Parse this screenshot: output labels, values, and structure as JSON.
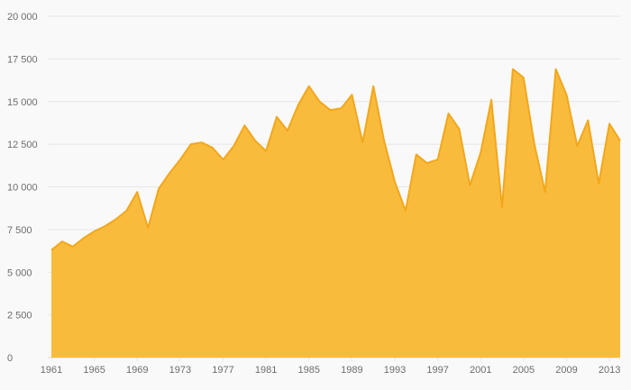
{
  "chart_data": {
    "type": "area",
    "title": "",
    "xlabel": "",
    "ylabel": "",
    "legend": "none",
    "grid": "horizontal",
    "ylim": [
      0,
      20000
    ],
    "y_tick_interval": 2500,
    "y_tick_labels": [
      "0",
      "2 500",
      "5 000",
      "7 500",
      "10 000",
      "12 500",
      "15 000",
      "17 500",
      "20 000"
    ],
    "x_tick_years": [
      1961,
      1965,
      1969,
      1973,
      1977,
      1981,
      1985,
      1989,
      1993,
      1997,
      2001,
      2005,
      2009,
      2013
    ],
    "x": [
      1961,
      1962,
      1963,
      1964,
      1965,
      1966,
      1967,
      1968,
      1969,
      1970,
      1971,
      1972,
      1973,
      1974,
      1975,
      1976,
      1977,
      1978,
      1979,
      1980,
      1981,
      1982,
      1983,
      1984,
      1985,
      1986,
      1987,
      1988,
      1989,
      1990,
      1991,
      1992,
      1993,
      1994,
      1995,
      1996,
      1997,
      1998,
      1999,
      2000,
      2001,
      2002,
      2003,
      2004,
      2005,
      2006,
      2007,
      2008,
      2009,
      2010,
      2011,
      2012,
      2013,
      2014
    ],
    "values": [
      6300,
      6800,
      6500,
      7000,
      7400,
      7700,
      8100,
      8600,
      9700,
      7600,
      9900,
      10800,
      11600,
      12500,
      12600,
      12300,
      11600,
      12400,
      13600,
      12700,
      12100,
      14100,
      13300,
      14800,
      15900,
      15000,
      14500,
      14600,
      15400,
      12600,
      15900,
      12700,
      10300,
      8600,
      11900,
      11400,
      11600,
      14300,
      13400,
      10100,
      12000,
      15100,
      8800,
      16900,
      16400,
      12500,
      9700,
      16900,
      15400,
      12400,
      13900,
      10200,
      13700,
      12700
    ],
    "colors": {
      "fill": "#f9bb3c",
      "line": "#f2a71b",
      "grid": "#e6e6e6",
      "axis": "#d6d6d6",
      "tick_text": "#6d6d6d",
      "background": "#f9f9f9"
    }
  }
}
